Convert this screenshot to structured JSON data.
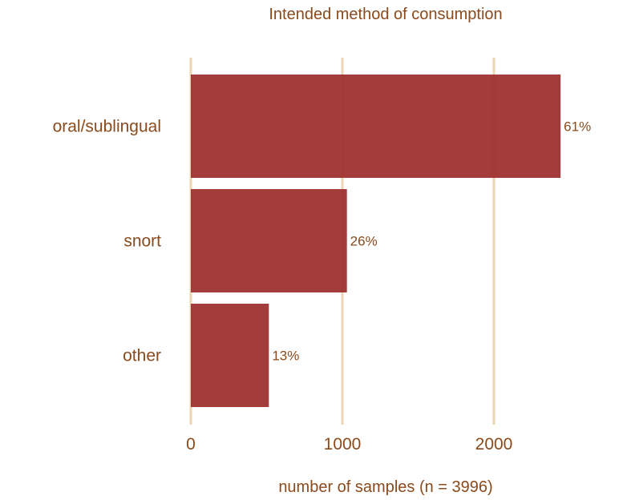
{
  "chart_data": {
    "type": "bar",
    "orientation": "horizontal",
    "title": "Intended method of consumption",
    "xlabel": "number of samples (n = 3996)",
    "ylabel": "",
    "categories": [
      "oral/sublingual",
      "snort",
      "other"
    ],
    "values": [
      2440,
      1030,
      515
    ],
    "data_labels": [
      "61%",
      "26%",
      "13%"
    ],
    "xticks": [
      0,
      1000,
      2000
    ],
    "xtick_labels": [
      "0",
      "1000",
      "2000"
    ],
    "xlim": [
      0,
      2750
    ],
    "grid": "vertical",
    "legend": "none",
    "colors": {
      "bar": "#a03232",
      "grid": "#ecd5b4",
      "text": "#8a4a1c"
    }
  }
}
